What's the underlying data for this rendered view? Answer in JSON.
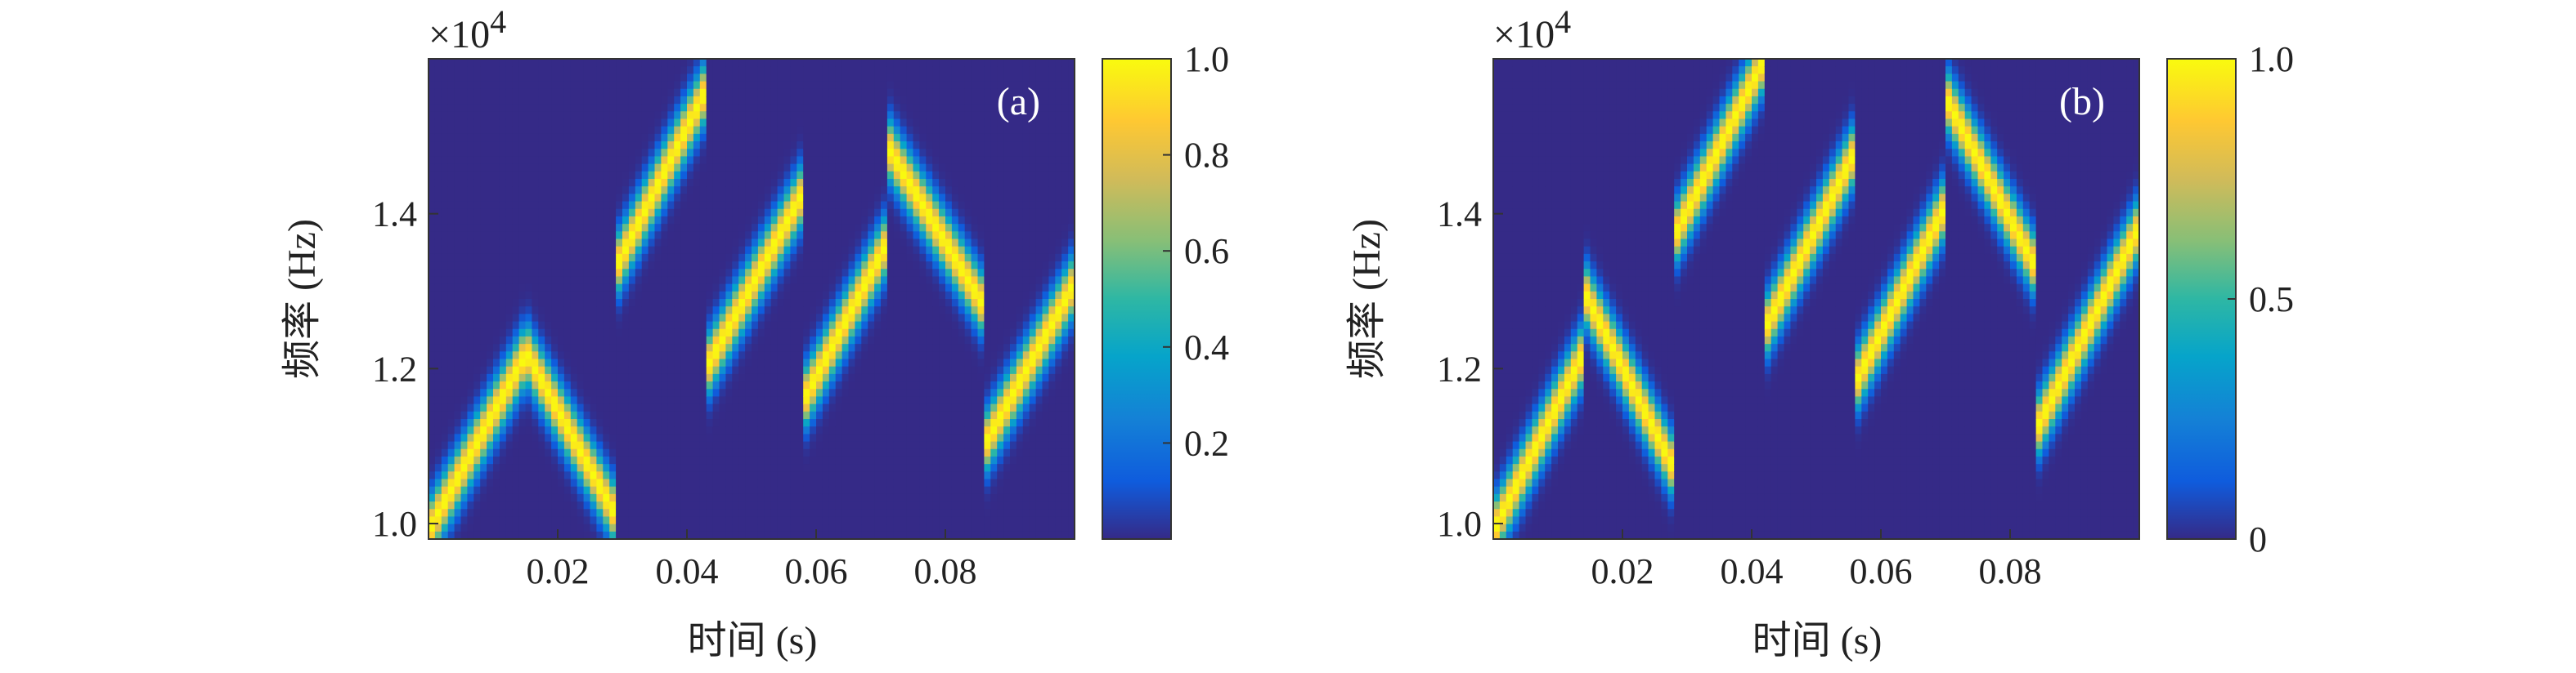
{
  "chart_data": [
    {
      "type": "heatmap",
      "panel_label": "(a)",
      "ylabel": "频率 (Hz)",
      "xlabel": "时间 (s)",
      "y_multiplier": "×10",
      "y_multiplier_exp": "4",
      "xlim": [
        0.0,
        0.1
      ],
      "ylim": [
        0.98,
        1.6
      ],
      "xticks": [
        0.02,
        0.04,
        0.06,
        0.08
      ],
      "xtick_labels": [
        "0.02",
        "0.04",
        "0.06",
        "0.08"
      ],
      "yticks": [
        1.0,
        1.2,
        1.4
      ],
      "ytick_labels": [
        "1.0",
        "1.2",
        "1.4"
      ],
      "colorbar": {
        "range": [
          0,
          1
        ],
        "ticks": [
          0.2,
          0.4,
          0.6,
          0.8,
          1.0
        ],
        "tick_labels": [
          "0.2",
          "0.4",
          "0.6",
          "0.8",
          "1.0"
        ]
      },
      "segments": [
        {
          "t_start": 0.0,
          "t_end": 0.0145,
          "f_start": 0.99,
          "f_end": 1.21
        },
        {
          "t_start": 0.0145,
          "t_end": 0.029,
          "f_start": 1.23,
          "f_end": 1.01
        },
        {
          "t_start": 0.029,
          "t_end": 0.043,
          "f_start": 1.33,
          "f_end": 1.56
        },
        {
          "t_start": 0.043,
          "t_end": 0.0575,
          "f_start": 1.2,
          "f_end": 1.42
        },
        {
          "t_start": 0.0575,
          "t_end": 0.0715,
          "f_start": 1.15,
          "f_end": 1.37
        },
        {
          "t_start": 0.0715,
          "t_end": 0.086,
          "f_start": 1.48,
          "f_end": 1.28
        },
        {
          "t_start": 0.086,
          "t_end": 0.1,
          "f_start": 1.1,
          "f_end": 1.31
        }
      ]
    },
    {
      "type": "heatmap",
      "panel_label": "(b)",
      "ylabel": "频率 (Hz)",
      "xlabel": "时间 (s)",
      "y_multiplier": "×10",
      "y_multiplier_exp": "4",
      "xlim": [
        0.0,
        0.1
      ],
      "ylim": [
        0.98,
        1.6
      ],
      "xticks": [
        0.02,
        0.04,
        0.06,
        0.08
      ],
      "xtick_labels": [
        "0.02",
        "0.04",
        "0.06",
        "0.08"
      ],
      "yticks": [
        1.0,
        1.2,
        1.4
      ],
      "ytick_labels": [
        "1.0",
        "1.2",
        "1.4"
      ],
      "colorbar": {
        "range": [
          0,
          1
        ],
        "ticks": [
          0,
          0.5,
          1.0
        ],
        "tick_labels": [
          "0",
          "0.5",
          "1.0"
        ]
      },
      "segments": [
        {
          "t_start": 0.0,
          "t_end": 0.014,
          "f_start": 0.99,
          "f_end": 1.22
        },
        {
          "t_start": 0.014,
          "t_end": 0.028,
          "f_start": 1.3,
          "f_end": 1.07
        },
        {
          "t_start": 0.028,
          "t_end": 0.042,
          "f_start": 1.37,
          "f_end": 1.6
        },
        {
          "t_start": 0.042,
          "t_end": 0.056,
          "f_start": 1.25,
          "f_end": 1.48
        },
        {
          "t_start": 0.056,
          "t_end": 0.07,
          "f_start": 1.18,
          "f_end": 1.41
        },
        {
          "t_start": 0.07,
          "t_end": 0.084,
          "f_start": 1.55,
          "f_end": 1.33
        },
        {
          "t_start": 0.084,
          "t_end": 0.098,
          "f_start": 1.12,
          "f_end": 1.35
        }
      ]
    }
  ]
}
